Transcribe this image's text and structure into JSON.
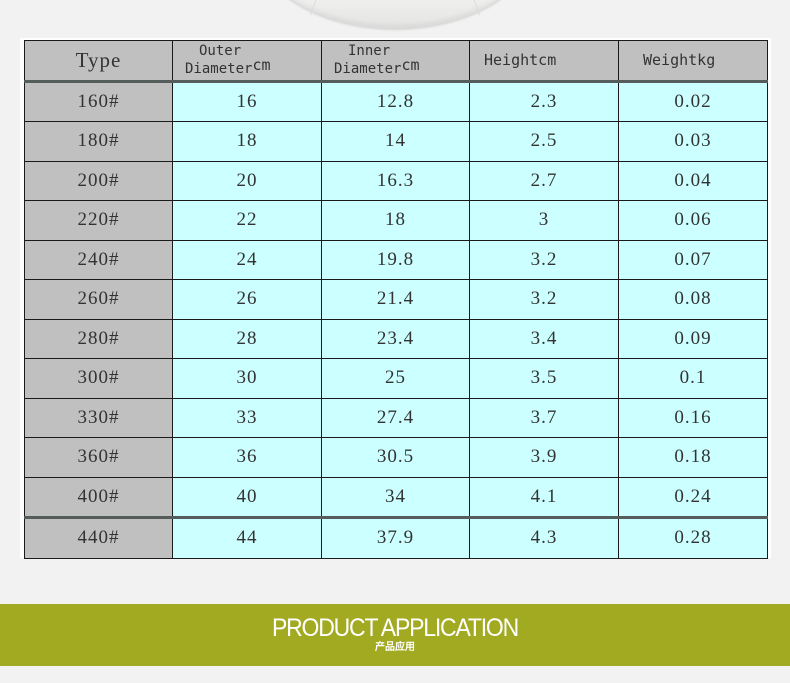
{
  "table": {
    "headers": {
      "type": "Type",
      "outer_line1": "Outer",
      "outer_line2": "Diameter",
      "outer_unit": "cm",
      "inner_line1": "Inner",
      "inner_line2": "Diameter",
      "inner_unit": "cm",
      "height": "Heightcm",
      "weight": "Weightkg"
    },
    "rows": [
      {
        "type": "160#",
        "outer": "16",
        "inner": "12.8",
        "height": "2.3",
        "weight": "0.02"
      },
      {
        "type": "180#",
        "outer": "18",
        "inner": "14",
        "height": "2.5",
        "weight": "0.03"
      },
      {
        "type": "200#",
        "outer": "20",
        "inner": "16.3",
        "height": "2.7",
        "weight": "0.04"
      },
      {
        "type": "220#",
        "outer": "22",
        "inner": "18",
        "height": "3",
        "weight": "0.06"
      },
      {
        "type": "240#",
        "outer": "24",
        "inner": "19.8",
        "height": "3.2",
        "weight": "0.07"
      },
      {
        "type": "260#",
        "outer": "26",
        "inner": "21.4",
        "height": "3.2",
        "weight": "0.08"
      },
      {
        "type": "280#",
        "outer": "28",
        "inner": "23.4",
        "height": "3.4",
        "weight": "0.09"
      },
      {
        "type": "300#",
        "outer": "30",
        "inner": "25",
        "height": "3.5",
        "weight": "0.1"
      },
      {
        "type": "330#",
        "outer": "33",
        "inner": "27.4",
        "height": "3.7",
        "weight": "0.16"
      },
      {
        "type": "360#",
        "outer": "36",
        "inner": "30.5",
        "height": "3.9",
        "weight": "0.18"
      },
      {
        "type": "400#",
        "outer": "40",
        "inner": "34",
        "height": "4.1",
        "weight": "0.24"
      },
      {
        "type": "440#",
        "outer": "44",
        "inner": "37.9",
        "height": "4.3",
        "weight": "0.28"
      }
    ]
  },
  "banner": {
    "title": "PRODUCT APPLICATION",
    "subtitle": "产品应用",
    "color": "#a2aa22"
  },
  "colors": {
    "header_bg": "#c0c0c0",
    "cell_bg": "#ccffff",
    "page_bg": "#f2f2f2"
  }
}
